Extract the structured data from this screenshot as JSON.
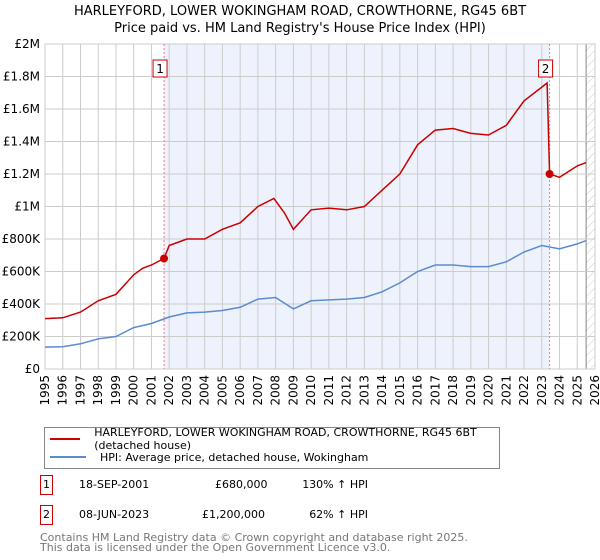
{
  "chart_data": {
    "type": "line",
    "title": "HARLEYFORD, LOWER WOKINGHAM ROAD, CROWTHORNE, RG45 6BT",
    "subtitle": "Price paid vs. HM Land Registry's House Price Index (HPI)",
    "xlim": [
      1995,
      2026
    ],
    "ylim": [
      0,
      2000000
    ],
    "x_ticks": [
      "1995",
      "1996",
      "1997",
      "1998",
      "1999",
      "2000",
      "2001",
      "2002",
      "2003",
      "2004",
      "2005",
      "2006",
      "2007",
      "2008",
      "2009",
      "2010",
      "2011",
      "2012",
      "2013",
      "2014",
      "2015",
      "2016",
      "2017",
      "2018",
      "2019",
      "2020",
      "2021",
      "2022",
      "2023",
      "2024",
      "2025",
      "2026"
    ],
    "y_ticks": [
      {
        "v": 0,
        "l": "£0"
      },
      {
        "v": 200000,
        "l": "£200K"
      },
      {
        "v": 400000,
        "l": "£400K"
      },
      {
        "v": 600000,
        "l": "£600K"
      },
      {
        "v": 800000,
        "l": "£800K"
      },
      {
        "v": 1000000,
        "l": "£1M"
      },
      {
        "v": 1200000,
        "l": "£1.2M"
      },
      {
        "v": 1400000,
        "l": "£1.4M"
      },
      {
        "v": 1600000,
        "l": "£1.6M"
      },
      {
        "v": 1800000,
        "l": "£1.8M"
      },
      {
        "v": 2000000,
        "l": "£2M"
      }
    ],
    "grid": true,
    "series": [
      {
        "name": "HARLEYFORD, LOWER WOKINGHAM ROAD, CROWTHORNE, RG45 6BT (detached house)",
        "color": "#cc0000",
        "x": [
          1995,
          1996,
          1997,
          1998,
          1999,
          2000,
          2000.5,
          2001,
          2001.71,
          2002,
          2003,
          2004,
          2005,
          2006,
          2007,
          2007.9,
          2008.5,
          2009,
          2009.5,
          2010,
          2011,
          2012,
          2013,
          2014,
          2015,
          2016,
          2017,
          2018,
          2019,
          2020,
          2021,
          2022,
          2023.3,
          2023.44,
          2024,
          2025,
          2025.5
        ],
        "y": [
          310000,
          315000,
          350000,
          420000,
          460000,
          580000,
          620000,
          640000,
          680000,
          760000,
          800000,
          800000,
          860000,
          900000,
          1000000,
          1050000,
          960000,
          860000,
          920000,
          980000,
          990000,
          980000,
          1000000,
          1100000,
          1200000,
          1380000,
          1470000,
          1480000,
          1450000,
          1440000,
          1500000,
          1650000,
          1760000,
          1200000,
          1180000,
          1250000,
          1270000
        ]
      },
      {
        "name": "HPI: Average price, detached house, Wokingham",
        "color": "#5b8bd0",
        "x": [
          1995,
          1996,
          1997,
          1998,
          1999,
          2000,
          2001,
          2002,
          2003,
          2004,
          2005,
          2006,
          2007,
          2008,
          2009,
          2010,
          2011,
          2012,
          2013,
          2014,
          2015,
          2016,
          2017,
          2018,
          2019,
          2020,
          2021,
          2022,
          2023,
          2024,
          2025,
          2025.5
        ],
        "y": [
          135000,
          137000,
          155000,
          185000,
          200000,
          255000,
          280000,
          320000,
          345000,
          350000,
          360000,
          380000,
          430000,
          440000,
          370000,
          420000,
          425000,
          430000,
          440000,
          475000,
          530000,
          600000,
          640000,
          640000,
          630000,
          630000,
          660000,
          720000,
          760000,
          740000,
          770000,
          790000
        ]
      }
    ],
    "annotations": [
      {
        "label": "1",
        "x": 2001.71,
        "y": 680000
      },
      {
        "label": "2",
        "x": 2023.44,
        "y": 1200000
      }
    ],
    "legend_placement": "below"
  },
  "transactions": [
    {
      "num": "1",
      "date": "18-SEP-2001",
      "price": "£680,000",
      "hpi": "130% ↑ HPI"
    },
    {
      "num": "2",
      "date": "08-JUN-2023",
      "price": "£1,200,000",
      "hpi": "62% ↑ HPI"
    }
  ],
  "footer": [
    "Contains HM Land Registry data © Crown copyright and database right 2025.",
    "This data is licensed under the Open Government Licence v3.0."
  ]
}
